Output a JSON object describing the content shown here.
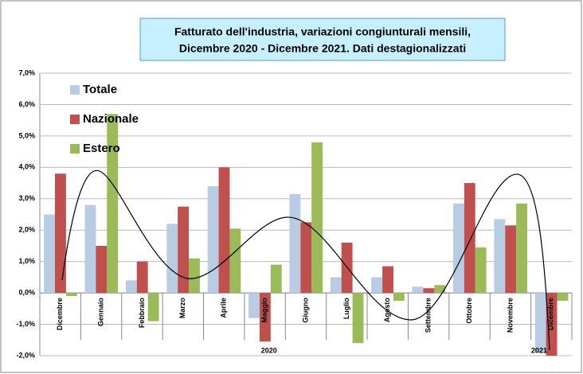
{
  "chart_data": {
    "type": "bar",
    "title": "Fatturato dell'industria, variazioni congiunturali mensili,",
    "subtitle": "Dicembre 2020 - Dicembre 2021. Dati destagionalizzati",
    "categories": [
      "Dicembre",
      "Gennaio",
      "Febbraio",
      "Marzo",
      "Aprile",
      "Maggio",
      "Giugno",
      "Luglio",
      "Agosto",
      "Settembre",
      "Ottobre",
      "Novembre",
      "Dicembre"
    ],
    "year_labels": [
      "2020",
      "2021"
    ],
    "series": [
      {
        "name": "Totale",
        "color": "#b8cce4",
        "values": [
          2.5,
          2.8,
          0.4,
          2.2,
          3.4,
          -0.8,
          3.15,
          0.5,
          0.5,
          0.2,
          2.85,
          2.35,
          -1.9
        ]
      },
      {
        "name": "Nazionale",
        "color": "#c0504d",
        "values": [
          3.8,
          1.5,
          1.0,
          2.75,
          4.0,
          -1.55,
          2.25,
          1.6,
          0.85,
          0.15,
          3.5,
          2.15,
          -2.0
        ]
      },
      {
        "name": "Estero",
        "color": "#9bbb59",
        "values": [
          -0.1,
          5.7,
          -0.9,
          1.1,
          2.05,
          0.9,
          4.8,
          -1.6,
          -0.25,
          0.25,
          1.45,
          2.85,
          -0.25
        ]
      }
    ],
    "ylim": [
      -2,
      7
    ],
    "yticks": [
      {
        "value": -2,
        "label": "-2,0%"
      },
      {
        "value": -1,
        "label": "-1,0%"
      },
      {
        "value": 0,
        "label": "0,0%"
      },
      {
        "value": 1,
        "label": "1,0%"
      },
      {
        "value": 2,
        "label": "2,0%"
      },
      {
        "value": 3,
        "label": "3,0%"
      },
      {
        "value": 4,
        "label": "4,0%"
      },
      {
        "value": 5,
        "label": "5,0%"
      },
      {
        "value": 6,
        "label": "6,0%"
      },
      {
        "value": 7,
        "label": "7,0%"
      }
    ],
    "grid": true
  }
}
